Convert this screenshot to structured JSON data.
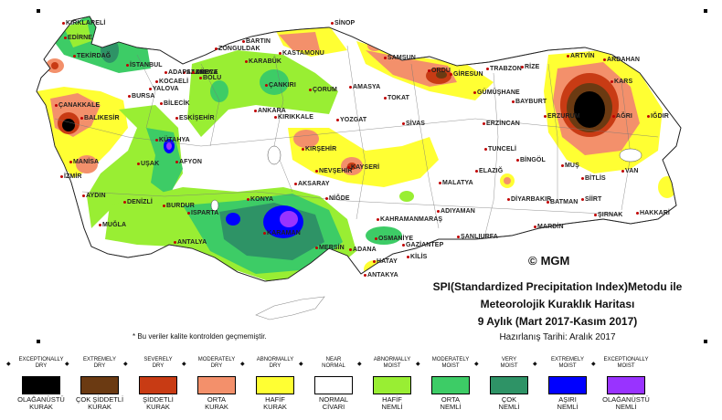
{
  "title": {
    "line1": "SPI(Standardized Precipitation Index)Metodu ile",
    "line2": "Meteorolojik Kuraklık Haritası",
    "line3": "9 Aylık (Mart 2017-Kasım 2017)",
    "date": "Hazırlanış Tarihi: Aralık 2017"
  },
  "logo": {
    "icon": "copyright-icon",
    "symbol": "©",
    "text": "MGM"
  },
  "note": "* Bu veriler kalite kontrolden geçmemiştir.",
  "colors": {
    "exceptionally_dry": "#000000",
    "extremely_dry": "#6b3a12",
    "severely_dry": "#c83b14",
    "moderately_dry": "#f3906b",
    "abnormally_dry": "#ffff33",
    "near_normal": "#ffffff",
    "abnormally_moist": "#99ee33",
    "moderately_moist": "#3dcc66",
    "very_moist": "#2e9366",
    "extremely_moist": "#0000ff",
    "exceptionally_moist": "#9933ff"
  },
  "legend": [
    {
      "en1": "EXCEPTIONALLY",
      "en2": "DRY",
      "tr1": "OLAĞANÜSTÜ",
      "tr2": "KURAK",
      "color": "#000000"
    },
    {
      "en1": "EXTREMELY",
      "en2": "DRY",
      "tr1": "ÇOK ŞİDDETLİ",
      "tr2": "KURAK",
      "color": "#6b3a12"
    },
    {
      "en1": "SEVERELY",
      "en2": "DRY",
      "tr1": "ŞİDDETLİ",
      "tr2": "KURAK",
      "color": "#c83b14"
    },
    {
      "en1": "MODERATELY",
      "en2": "DRY",
      "tr1": "ORTA",
      "tr2": "KURAK",
      "color": "#f3906b"
    },
    {
      "en1": "ABNORMALLY",
      "en2": "DRY",
      "tr1": "HAFİF",
      "tr2": "KURAK",
      "color": "#ffff33"
    },
    {
      "en1": "NEAR",
      "en2": "NORMAL",
      "tr1": "NORMAL",
      "tr2": "CİVARI",
      "color": "#ffffff"
    },
    {
      "en1": "ABNORMALLY",
      "en2": "MOIST",
      "tr1": "HAFİF",
      "tr2": "NEMLİ",
      "color": "#99ee33"
    },
    {
      "en1": "MODERATELY",
      "en2": "MOIST",
      "tr1": "ORTA",
      "tr2": "NEMLİ",
      "color": "#3dcc66"
    },
    {
      "en1": "VERY",
      "en2": "MOIST",
      "tr1": "ÇOK",
      "tr2": "NEMLİ",
      "color": "#2e9366"
    },
    {
      "en1": "EXTREMELY",
      "en2": "MOIST",
      "tr1": "AŞIRI",
      "tr2": "NEMLİ",
      "color": "#0000ff"
    },
    {
      "en1": "EXCEPTIONALLY",
      "en2": "MOIST",
      "tr1": "OLAĞANÜSTÜ",
      "tr2": "NEMLİ",
      "color": "#9933ff"
    }
  ],
  "cities": [
    "KIRKLARELİ",
    "EDİRNE",
    "TEKİRDAĞ",
    "İSTANBUL",
    "KOCAELİ",
    "YALOVA",
    "SAKARYA",
    "ADAPAZARI",
    "BOLU",
    "DÜZCE",
    "BURSA",
    "BİLECİK",
    "ÇANAKKALE",
    "BALIKESİR",
    "ESKİŞEHİR",
    "KÜTAHYA",
    "MANİSA",
    "İZMİR",
    "UŞAK",
    "AFYON",
    "AYDIN",
    "DENİZLİ",
    "MUĞLA",
    "BURDUR",
    "ISPARTA",
    "ANTALYA",
    "KONYA",
    "KARAMAN",
    "MERSİN",
    "ADANA",
    "OSMANİYE",
    "HATAY",
    "ANTAKYA",
    "KAHRAMANMARAŞ",
    "GAZİANTEP",
    "KİLİS",
    "ŞANLIURFA",
    "ADIYAMAN",
    "MALATYA",
    "NİĞDE",
    "AKSARAY",
    "NEVŞEHİR",
    "KAYSERİ",
    "KIRŞEHİR",
    "KIRIKKALE",
    "ANKARA",
    "ÇANKIRI",
    "KASTAMONU",
    "BARTIN",
    "ZONGULDAK",
    "KARABÜK",
    "SİNOP",
    "SAMSUN",
    "ÇORUM",
    "AMASYA",
    "TOKAT",
    "ORDU",
    "GİRESUN",
    "TRABZON",
    "RİZE",
    "ARTVİN",
    "ARDAHAN",
    "GÜMÜŞHANE",
    "BAYBURT",
    "ERZİNCAN",
    "ERZURUM",
    "KARS",
    "AĞRI",
    "IĞDIR",
    "SİVAS",
    "YOZGAT",
    "TUNCELİ",
    "ELAZIĞ",
    "BİNGÖL",
    "MUŞ",
    "BİTLİS",
    "VAN",
    "DİYARBAKIR",
    "BATMAN",
    "SİİRT",
    "ŞIRNAK",
    "HAKKARİ",
    "MARDİN"
  ]
}
